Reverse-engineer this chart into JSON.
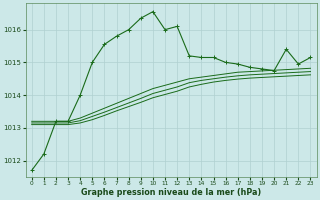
{
  "title": "Graphe pression niveau de la mer (hPa)",
  "background_color": "#cce8e8",
  "grid_color": "#b0d0d0",
  "line_color": "#1a6b1a",
  "x_labels": [
    "0",
    "1",
    "2",
    "3",
    "4",
    "5",
    "6",
    "7",
    "8",
    "9",
    "10",
    "11",
    "12",
    "13",
    "14",
    "15",
    "16",
    "17",
    "18",
    "19",
    "20",
    "21",
    "22",
    "23"
  ],
  "ylim": [
    1011.5,
    1016.8
  ],
  "yticks": [
    1012,
    1013,
    1014,
    1015,
    1016
  ],
  "series1": [
    1011.7,
    1012.2,
    1013.2,
    1013.2,
    1014.0,
    1015.0,
    1015.55,
    1015.8,
    1016.0,
    1016.35,
    1016.55,
    1016.0,
    1016.1,
    1015.2,
    1015.15,
    1015.15,
    1015.0,
    1014.95,
    1014.85,
    1014.8,
    1014.75,
    1015.4,
    1014.95,
    1015.15
  ],
  "series2": [
    1013.2,
    1013.2,
    1013.2,
    1013.2,
    1013.3,
    1013.45,
    1013.6,
    1013.75,
    1013.9,
    1014.05,
    1014.2,
    1014.3,
    1014.4,
    1014.5,
    1014.55,
    1014.6,
    1014.65,
    1014.7,
    1014.72,
    1014.74,
    1014.76,
    1014.78,
    1014.8,
    1014.82
  ],
  "series3": [
    1013.15,
    1013.15,
    1013.15,
    1013.15,
    1013.22,
    1013.35,
    1013.48,
    1013.62,
    1013.76,
    1013.9,
    1014.05,
    1014.15,
    1014.25,
    1014.38,
    1014.45,
    1014.5,
    1014.55,
    1014.59,
    1014.62,
    1014.64,
    1014.66,
    1014.68,
    1014.7,
    1014.72
  ],
  "series4": [
    1013.1,
    1013.1,
    1013.1,
    1013.1,
    1013.15,
    1013.25,
    1013.38,
    1013.52,
    1013.65,
    1013.78,
    1013.92,
    1014.02,
    1014.12,
    1014.25,
    1014.33,
    1014.4,
    1014.45,
    1014.49,
    1014.52,
    1014.54,
    1014.56,
    1014.58,
    1014.6,
    1014.62
  ]
}
